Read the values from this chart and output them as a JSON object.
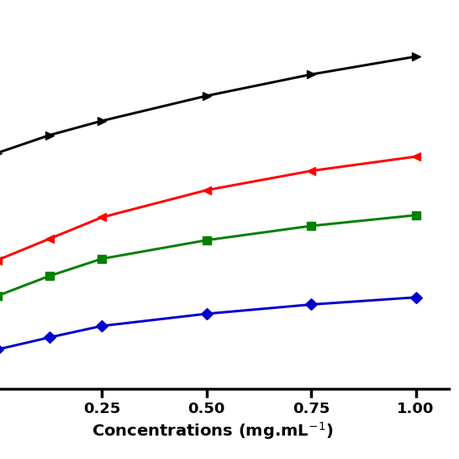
{
  "x": [
    0.0,
    0.125,
    0.25,
    0.5,
    0.75,
    1.0
  ],
  "series": [
    {
      "color": "#000000",
      "marker": ">",
      "values": [
        3.3,
        3.55,
        3.75,
        4.1,
        4.4,
        4.65
      ]
    },
    {
      "color": "#ff0000",
      "marker": "<",
      "values": [
        1.8,
        2.1,
        2.4,
        2.78,
        3.05,
        3.25
      ]
    },
    {
      "color": "#008000",
      "marker": "s",
      "values": [
        1.3,
        1.58,
        1.82,
        2.08,
        2.28,
        2.43
      ]
    },
    {
      "color": "#0000cc",
      "marker": "D",
      "values": [
        0.55,
        0.72,
        0.88,
        1.05,
        1.18,
        1.28
      ]
    }
  ],
  "xlabel": "Concentrations (mg.mL$^{-1}$)",
  "xlim": [
    -0.05,
    1.08
  ],
  "ylim": [
    0.0,
    5.5
  ],
  "xticks": [
    0.25,
    0.5,
    0.75,
    1.0
  ],
  "xtick_labels": [
    "0.25",
    "0.50",
    "0.75",
    "1.00"
  ],
  "background_color": "#ffffff",
  "linewidth": 2.2,
  "markersize": 7,
  "xlabel_fontsize": 14,
  "tick_fontsize": 13
}
